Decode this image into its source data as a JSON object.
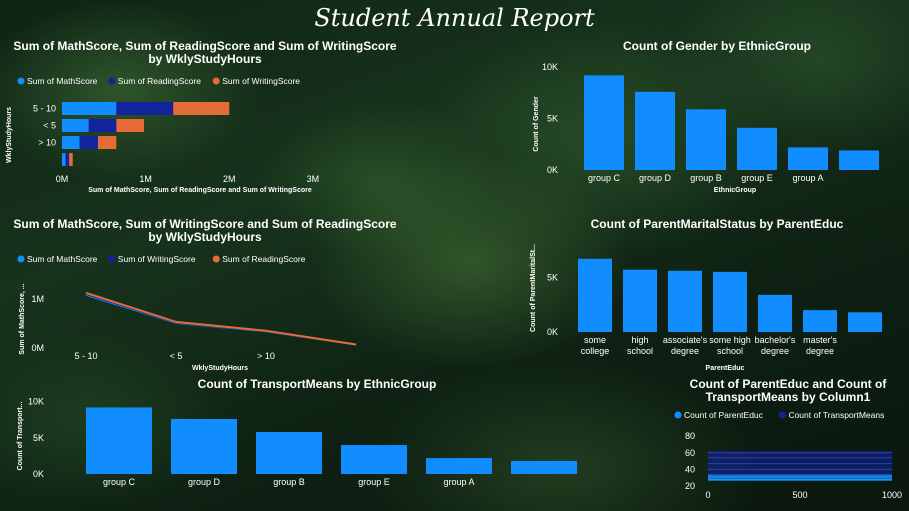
{
  "report_title": "Student Annual Report",
  "colors": {
    "math": "#118DFF",
    "reading": "#12239E",
    "writing": "#E66C37",
    "bar": "#118DFF",
    "parentEduc": "#118DFF",
    "transport": "#12239E"
  },
  "chart_data": [
    {
      "id": "c1",
      "type": "bar",
      "orientation": "horizontal",
      "stacked": true,
      "title": "Sum of MathScore, Sum of ReadingScore and Sum of WritingScore by WklyStudyHours",
      "title_lines": [
        "Sum of MathScore, Sum of ReadingScore and Sum of WritingScore",
        "by WklyStudyHours"
      ],
      "xlabel": "Sum of MathScore, Sum of ReadingScore and Sum of WritingScore",
      "ylabel": "WklyStudyHours",
      "categories": [
        "5 - 10",
        "< 5",
        "> 10",
        ""
      ],
      "series": [
        {
          "name": "Sum of MathScore",
          "values": [
            650000,
            320000,
            210000,
            42000
          ]
        },
        {
          "name": "Sum of ReadingScore",
          "values": [
            680000,
            330000,
            220000,
            43000
          ]
        },
        {
          "name": "Sum of WritingScore",
          "values": [
            670000,
            330000,
            220000,
            43000
          ]
        }
      ],
      "xlim": [
        0,
        3300000
      ],
      "xticks": [
        0,
        1000000,
        2000000,
        3000000
      ],
      "xtick_labels": [
        "0M",
        "1M",
        "2M",
        "3M"
      ],
      "legend": "top-left"
    },
    {
      "id": "c2",
      "type": "line",
      "title": "Sum of MathScore, Sum of WritingScore and Sum of ReadingScore by WklyStudyHours",
      "title_lines": [
        "Sum of MathScore, Sum of WritingScore and Sum of ReadingScore",
        "by WklyStudyHours"
      ],
      "xlabel": "WklyStudyHours",
      "ylabel": "Sum of MathScore, ...",
      "categories": [
        "5 - 10",
        "< 5",
        "> 10",
        ""
      ],
      "series": [
        {
          "name": "Sum of MathScore",
          "values": [
            1080000,
            510000,
            340000,
            70000
          ]
        },
        {
          "name": "Sum of WritingScore",
          "values": [
            1100000,
            520000,
            345000,
            71000
          ]
        },
        {
          "name": "Sum of ReadingScore",
          "values": [
            1120000,
            530000,
            350000,
            72000
          ]
        }
      ],
      "ylim": [
        0,
        1300000
      ],
      "yticks": [
        0,
        1000000
      ],
      "ytick_labels": [
        "0M",
        "1M"
      ],
      "legend": "top-left"
    },
    {
      "id": "c3",
      "type": "bar",
      "title": "Count of TransportMeans by EthnicGroup",
      "xlabel": "",
      "ylabel": "Count of Transport...",
      "categories": [
        "group C",
        "group D",
        "group B",
        "group E",
        "group A",
        ""
      ],
      "values": [
        9200,
        7600,
        5800,
        4000,
        2200,
        1800
      ],
      "ylim": [
        0,
        10500
      ],
      "yticks": [
        0,
        5000,
        10000
      ],
      "ytick_labels": [
        "0K",
        "5K",
        "10K"
      ]
    },
    {
      "id": "c4",
      "type": "bar",
      "title": "Count of Gender by EthnicGroup",
      "xlabel": "EthnicGroup",
      "ylabel": "Count of Gender",
      "categories": [
        "group C",
        "group D",
        "group B",
        "group E",
        "group A",
        ""
      ],
      "values": [
        9200,
        7600,
        5900,
        4100,
        2200,
        1900
      ],
      "ylim": [
        0,
        10500
      ],
      "yticks": [
        0,
        5000,
        10000
      ],
      "ytick_labels": [
        "0K",
        "5K",
        "10K"
      ]
    },
    {
      "id": "c5",
      "type": "bar",
      "title": "Count of ParentMaritalStatus by ParentEduc",
      "xlabel": "ParentEduc",
      "ylabel": "Count of ParentMaritalSt...",
      "categories": [
        [
          "some",
          "college"
        ],
        [
          "high",
          "school"
        ],
        [
          "associate's",
          "degree"
        ],
        [
          "some high",
          "school"
        ],
        [
          "bachelor's",
          "degree"
        ],
        [
          "master's",
          "degree"
        ],
        [
          ""
        ]
      ],
      "values": [
        6700,
        5700,
        5600,
        5500,
        3400,
        2000,
        1800
      ],
      "ylim": [
        0,
        7500
      ],
      "yticks": [
        0,
        5000
      ],
      "ytick_labels": [
        "0K",
        "5K"
      ]
    },
    {
      "id": "c6",
      "type": "line",
      "title": "Count of ParentEduc and Count of TransportMeans by Column1",
      "title_lines": [
        "Count of ParentEduc and Count of",
        "TransportMeans by Column1"
      ],
      "series": [
        {
          "name": "Count of ParentEduc"
        },
        {
          "name": "Count of TransportMeans"
        }
      ],
      "xlim": [
        0,
        1000
      ],
      "xticks": [
        0,
        500,
        1000
      ],
      "xtick_labels": [
        "0",
        "500",
        "1000"
      ],
      "ylim": [
        20,
        85
      ],
      "yticks": [
        20,
        40,
        60,
        80
      ],
      "ytick_labels": [
        "20",
        "40",
        "60",
        "80"
      ],
      "legend": "top-left"
    }
  ]
}
